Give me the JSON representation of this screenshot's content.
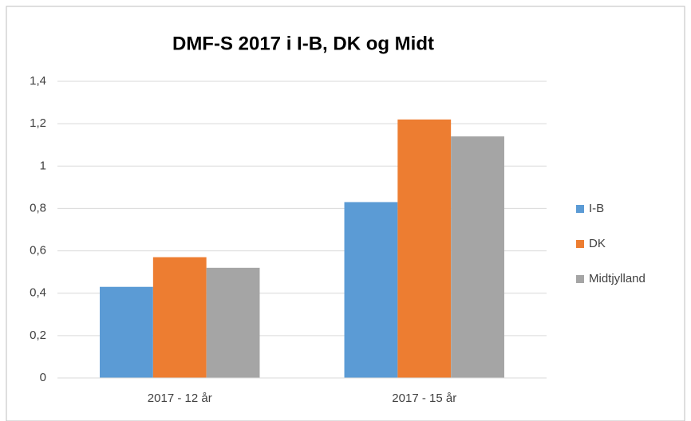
{
  "chart_data": {
    "type": "bar",
    "title": "DMF-S 2017 i I-B, DK og Midt",
    "categories": [
      "2017 - 12 år",
      "2017 - 15 år"
    ],
    "series": [
      {
        "name": "I-B",
        "color": "#5b9bd5",
        "values": [
          0.43,
          0.83
        ]
      },
      {
        "name": "DK",
        "color": "#ed7d31",
        "values": [
          0.57,
          1.22
        ]
      },
      {
        "name": "Midtjylland",
        "color": "#a5a5a5",
        "values": [
          0.52,
          1.14
        ]
      }
    ],
    "ylim": [
      0,
      1.4
    ],
    "yticks": [
      0,
      {
        "value": 0.2,
        "label": "0,2"
      },
      {
        "value": 0.4,
        "label": "0,4"
      },
      {
        "value": 0.6,
        "label": "0,6"
      },
      {
        "value": 0.8,
        "label": "0,8"
      },
      1,
      {
        "value": 1.2,
        "label": "1,2"
      },
      {
        "value": 1.4,
        "label": "1,4"
      }
    ],
    "grid": true,
    "legend": "right"
  }
}
